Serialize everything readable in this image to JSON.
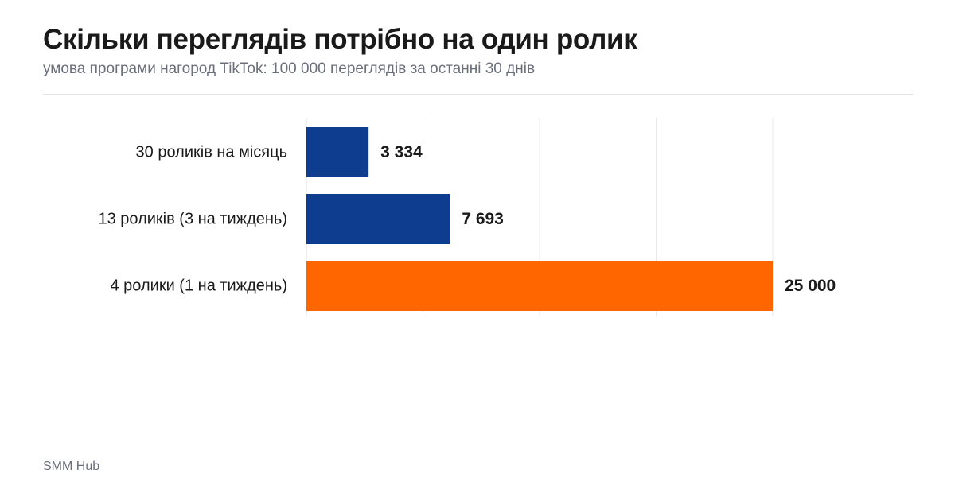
{
  "header": {
    "title": "Скільки переглядів потрібно на один ролик",
    "subtitle": "умова програми нагород TikTok: 100 000 переглядів за останні 30 днів"
  },
  "footer": {
    "source": "SMM Hub"
  },
  "colors": {
    "primary_bar": "#0e3d8f",
    "highlight_bar": "#ff6600",
    "grid": "#e8e8e8"
  },
  "chart_data": {
    "type": "bar",
    "orientation": "horizontal",
    "categories": [
      "30 роликів на місяць",
      "13 роликів (3 на тиждень)",
      "4 ролики (1 на тиждень)"
    ],
    "values": [
      3334,
      7693,
      25000
    ],
    "value_labels": [
      "3 334",
      "7 693",
      "25 000"
    ],
    "highlight_index": 2,
    "xlim": [
      0,
      25000
    ],
    "grid": true,
    "legend": "none"
  }
}
